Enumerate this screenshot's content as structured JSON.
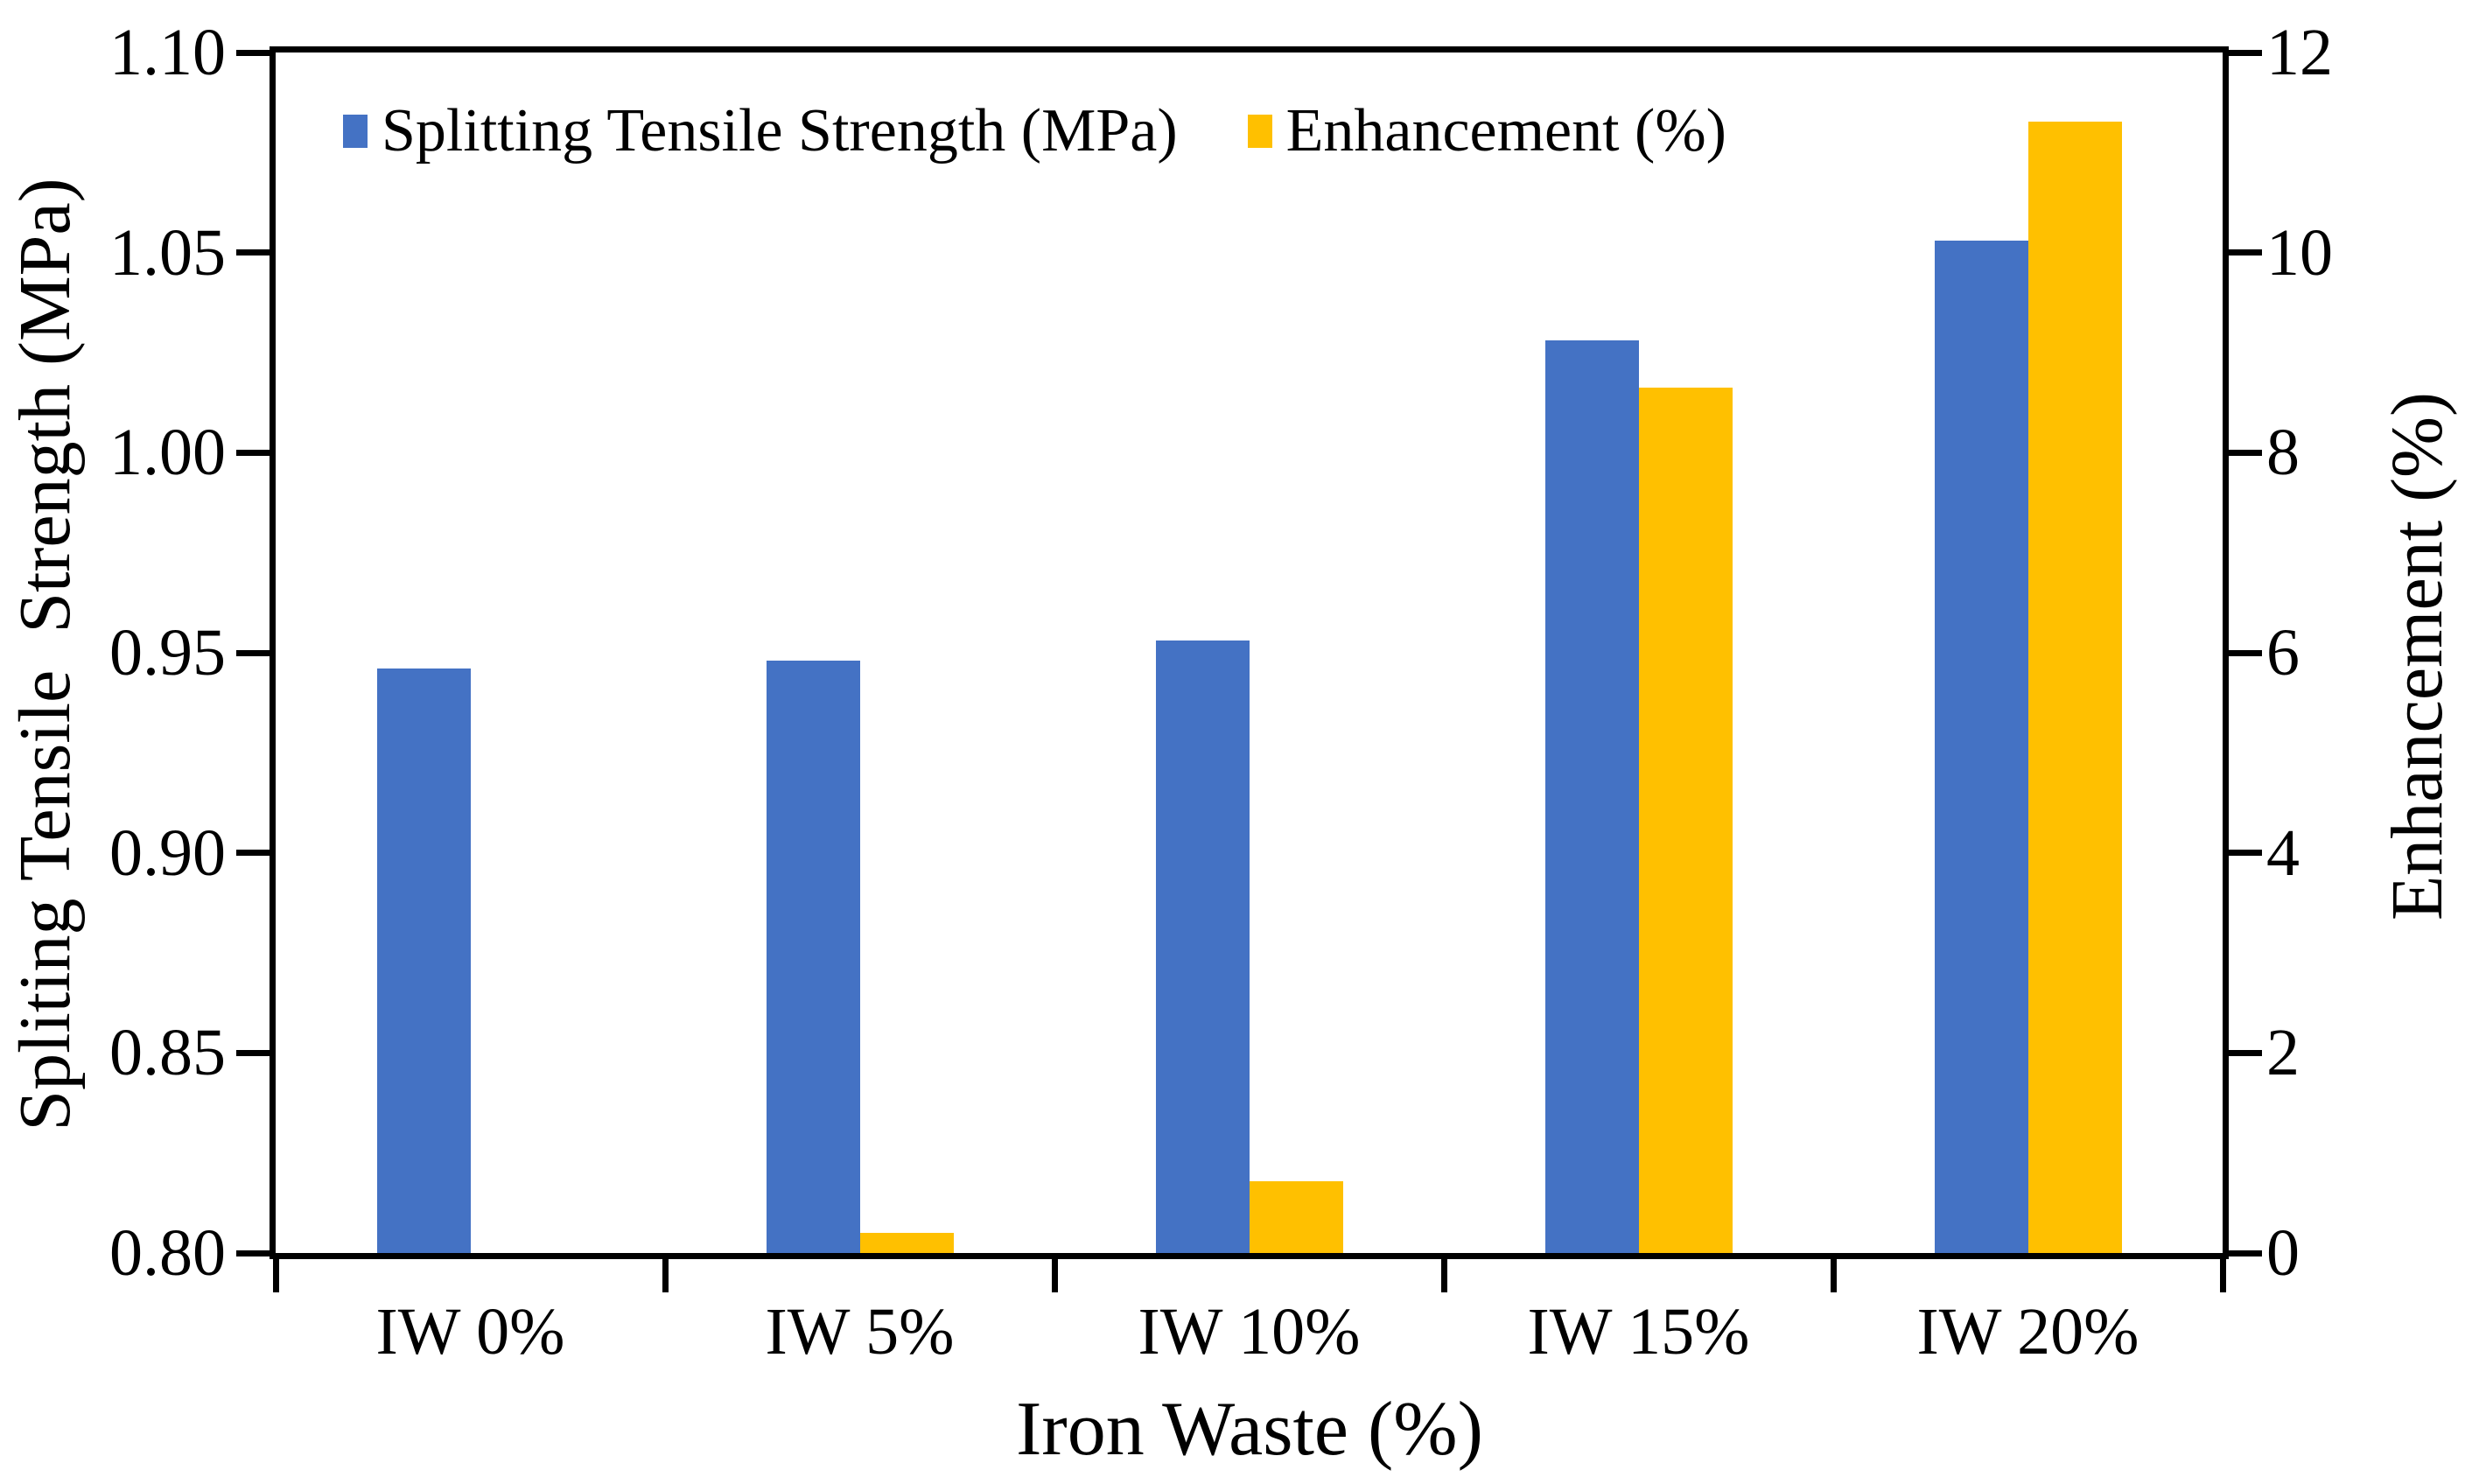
{
  "chart_data": {
    "type": "bar",
    "title": "",
    "categories": [
      "IW 0%",
      "IW 5%",
      "IW 10%",
      "IW 15%",
      "IW 20%"
    ],
    "series": [
      {
        "name": "Splitting Tensile Strength (MPa)",
        "axis": "left",
        "color": "#4472C4",
        "values": [
          0.946,
          0.948,
          0.953,
          1.028,
          1.053
        ]
      },
      {
        "name": "Enhancement (%)",
        "axis": "right",
        "color": "#FFC000",
        "values": [
          0,
          0.2,
          0.72,
          8.65,
          11.31
        ]
      }
    ],
    "left_axis": {
      "label": "Spliting Tensile  Strength (MPa)",
      "min": 0.8,
      "max": 1.1,
      "ticks": [
        "1.10",
        "1.05",
        "1.00",
        "0.95",
        "0.90",
        "0.85",
        "0.80"
      ]
    },
    "right_axis": {
      "label": "Enhancement (%)",
      "min": 0,
      "max": 12,
      "ticks": [
        "12",
        "10",
        "8",
        "6",
        "4",
        "2",
        "0"
      ]
    },
    "x_axis": {
      "label": "Iron Waste (%)"
    },
    "legend_position": "top-inside",
    "grid": false,
    "frame_color": "#000000",
    "background_color": "#FFFFFF"
  }
}
